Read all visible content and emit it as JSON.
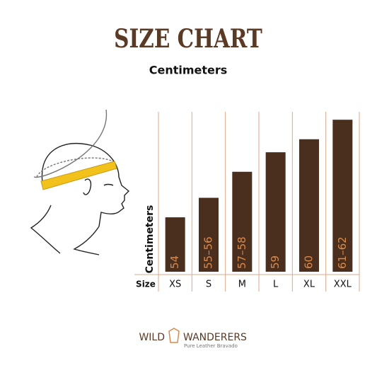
{
  "chart_data": {
    "type": "bar",
    "title": "SIZE CHART",
    "subtitle": "Centimeters",
    "y_label": "Centimeters",
    "x_label": "Size",
    "categories": [
      "XS",
      "S",
      "M",
      "L",
      "XL",
      "XXL"
    ],
    "values": [
      54,
      55.5,
      57.5,
      59,
      60,
      61.5
    ],
    "value_labels": [
      "54",
      "55–56",
      "57–58",
      "59",
      "60",
      "61–62"
    ],
    "color": "#4a2e1e",
    "label_color": "#d98a4b",
    "grid_color": "#dba98a",
    "ylim": [
      49.6,
      62
    ]
  },
  "logo": {
    "left": "WILD",
    "right": "WANDERERS",
    "tagline": "Pure Leather Bravado"
  }
}
